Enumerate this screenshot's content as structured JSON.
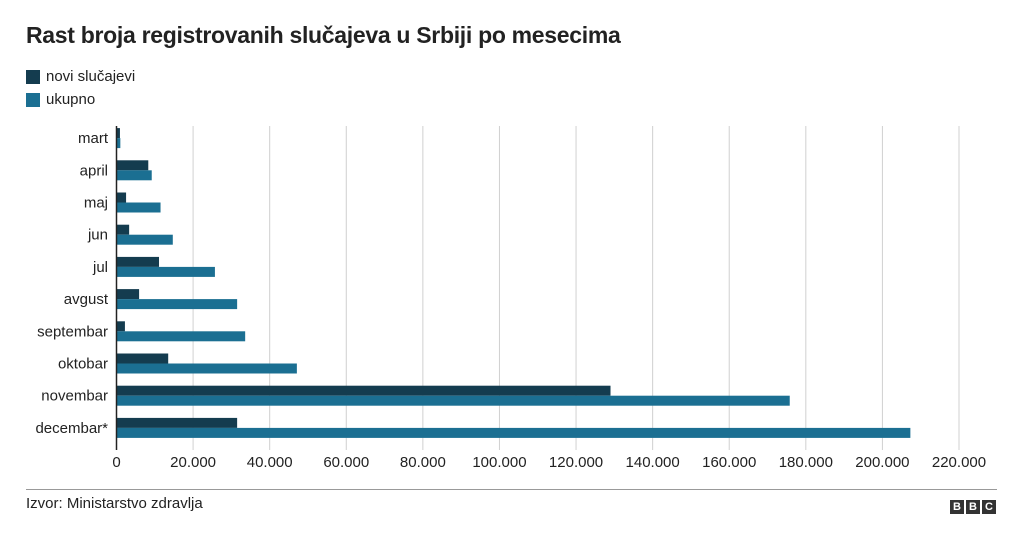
{
  "chart_data": {
    "type": "bar",
    "orientation": "horizontal",
    "title": "Rast broja registrovanih slučajeva u Srbiji po mesecima",
    "categories": [
      "mart",
      "april",
      "maj",
      "jun",
      "jul",
      "avgust",
      "septembar",
      "oktobar",
      "novembar",
      "decembar*"
    ],
    "series": [
      {
        "name": "novi slučajevi",
        "color": "#143c4f",
        "values": [
          900,
          8300,
          2500,
          3300,
          11100,
          5900,
          2200,
          13500,
          129000,
          31500
        ]
      },
      {
        "name": "ukupno",
        "color": "#1b6f92",
        "values": [
          1000,
          9200,
          11500,
          14700,
          25700,
          31500,
          33600,
          47100,
          175800,
          207300
        ]
      }
    ],
    "xlim": [
      0,
      220000
    ],
    "xticks": [
      0,
      20000,
      40000,
      60000,
      80000,
      100000,
      120000,
      140000,
      160000,
      180000,
      200000,
      220000
    ],
    "xtick_labels": [
      "0",
      "20.000",
      "40.000",
      "60.000",
      "80.000",
      "100.000",
      "120.000",
      "140.000",
      "160.000",
      "180.000",
      "200.000",
      "220.000"
    ],
    "grid": true,
    "legend": "top-left"
  },
  "source": "Izvor: Ministarstvo zdravlja",
  "logo": "BBC"
}
